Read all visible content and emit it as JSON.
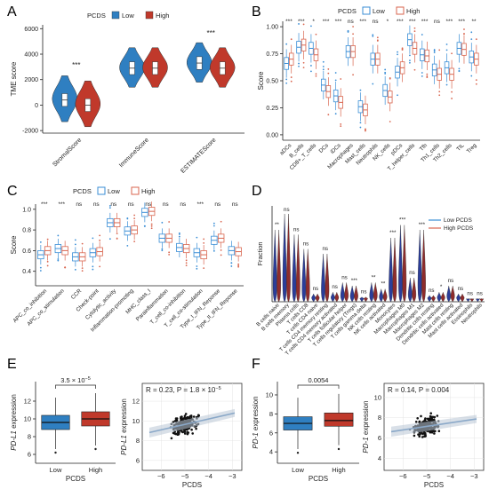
{
  "colors": {
    "low": "#2f7fc1",
    "high": "#c0392b",
    "lowLine": "#3a8ed6",
    "highLine": "#d9664f",
    "grid": "#e4e4e4",
    "reg": "#8aa8c8"
  },
  "chart_data": [
    {
      "panel": "A",
      "type": "violin",
      "legend_title": "PCDS",
      "legend": [
        "Low",
        "High"
      ],
      "ylabel": "TME score",
      "ylim": [
        -2200,
        6300
      ],
      "yticks": [
        -2000,
        0,
        2000,
        4000,
        6000
      ],
      "categories": [
        "StromalScore",
        "ImmuneScore",
        "ESTIMATEScore"
      ],
      "significance": [
        "***",
        "",
        "***"
      ],
      "series": [
        {
          "name": "Low",
          "median": [
            400,
            2900,
            3300
          ]
        },
        {
          "name": "High",
          "median": [
            0,
            2900,
            2900
          ]
        }
      ]
    },
    {
      "panel": "B",
      "type": "box",
      "legend_title": "PCDS",
      "legend": [
        "Low",
        "High"
      ],
      "ylabel": "Score",
      "ylim": [
        -0.05,
        1.05
      ],
      "yticks": [
        "0.00",
        "0.25",
        "0.50",
        "0.75",
        "1.00"
      ],
      "categories": [
        "aDCs",
        "B_cells",
        "CD8+_T_cells",
        "DCs",
        "iDCs",
        "Macrophages",
        "Mast_cells",
        "Neutrophils",
        "NK_cells",
        "pDCs",
        "T_helper_cells",
        "Tfh",
        "Th1_cells",
        "Th2_cells",
        "TIL",
        "Treg"
      ],
      "significance": [
        "***",
        "***",
        "*",
        "***",
        "***",
        "ns",
        "***",
        "ns",
        "*",
        "***",
        "***",
        "***",
        "ns",
        "***",
        "***",
        "**"
      ],
      "series": [
        {
          "name": "Low",
          "median": [
            0.66,
            0.81,
            0.8,
            0.46,
            0.36,
            0.77,
            0.26,
            0.7,
            0.41,
            0.58,
            0.88,
            0.74,
            0.6,
            0.62,
            0.8,
            0.72
          ]
        },
        {
          "name": "High",
          "median": [
            0.7,
            0.83,
            0.74,
            0.4,
            0.3,
            0.77,
            0.23,
            0.7,
            0.35,
            0.62,
            0.8,
            0.73,
            0.56,
            0.56,
            0.79,
            0.7
          ]
        }
      ]
    },
    {
      "panel": "C",
      "type": "box",
      "legend_title": "PCDS",
      "legend": [
        "Low",
        "High"
      ],
      "ylabel": "Score",
      "ylim": [
        0.26,
        1.05
      ],
      "yticks": [
        "0.4",
        "0.6",
        "0.8",
        "1.0"
      ],
      "categories": [
        "APC_co_inhibition",
        "APC_co_stimulation",
        "CCR",
        "Check-point",
        "Cytolytic_activity",
        "Inflammation-promoting",
        "MHC_class_I",
        "Parainflammation",
        "T_cell_co-inhibition",
        "T_cell_co-stimulation",
        "Type_I_IFN_Reponse",
        "Type_II_IFN_Reponse"
      ],
      "significance": [
        "***",
        "***",
        "ns",
        "ns",
        "ns",
        "ns",
        "ns",
        "ns",
        "ns",
        "***",
        "ns",
        "ns"
      ],
      "series": [
        {
          "name": "Low",
          "median": [
            0.56,
            0.62,
            0.54,
            0.58,
            0.87,
            0.79,
            0.97,
            0.72,
            0.63,
            0.58,
            0.7,
            0.6
          ]
        },
        {
          "name": "High",
          "median": [
            0.6,
            0.6,
            0.54,
            0.59,
            0.87,
            0.8,
            0.98,
            0.72,
            0.62,
            0.56,
            0.72,
            0.59
          ]
        }
      ]
    },
    {
      "panel": "D",
      "type": "violin",
      "ylabel": "Fraction",
      "legend": [
        "Low PCDS",
        "High PCDS"
      ],
      "categories": [
        "B cells naive",
        "B cells memory",
        "Plasma cells",
        "T cells CD8",
        "T cells CD4 naive",
        "T cells CD4 memory resting",
        "T cells CD4 memory activated",
        "T cells follicular helper",
        "T cells regulatory (Tregs)",
        "T cells gamma delta",
        "NK cells resting",
        "NK cells activated",
        "Monocytes",
        "Macrophages M0",
        "Macrophages M1",
        "Macrophages M2",
        "Dendritic cells resting",
        "Dendritic cells activated",
        "Mast cells resting",
        "Mast cells activated",
        "Eosinophils",
        "Neutrophils"
      ],
      "significance": [
        "**",
        "ns",
        "ns",
        "ns",
        "ns",
        "ns",
        "ns",
        "ns",
        "***",
        "ns",
        "**",
        "**",
        "***",
        "***",
        "ns",
        "***",
        "ns",
        "*",
        "ns",
        "ns",
        "ns",
        "ns"
      ],
      "max": [
        0.45,
        0.55,
        0.42,
        0.33,
        0.05,
        0.3,
        0.06,
        0.12,
        0.1,
        0.03,
        0.12,
        0.08,
        0.4,
        0.48,
        0.15,
        0.45,
        0.04,
        0.06,
        0.1,
        0.05,
        0.02,
        0.02
      ]
    },
    {
      "panel": "E1",
      "type": "box",
      "ylabel_gene": "PD-L1",
      "ylabel_suffix": " expression",
      "xlabel": "PCDS",
      "categories": [
        "Low",
        "High"
      ],
      "p_label": "3.5 × 10",
      "p_exp": "−5",
      "yticks": [
        "6",
        "8",
        "10",
        "12"
      ],
      "ylim": [
        5,
        14.2
      ],
      "q1": [
        8.8,
        9.2
      ],
      "median": [
        9.6,
        10.0
      ],
      "q3": [
        10.4,
        10.8
      ],
      "whisker_low": [
        6.6,
        7.0
      ],
      "whisker_high": [
        12.4,
        12.9
      ]
    },
    {
      "panel": "E2",
      "type": "scatter",
      "xlabel": "PCDS",
      "ylabel_gene": "PD-L1",
      "ylabel_suffix": " expression",
      "annotation": "R = 0.23, P = 1.8 × 10",
      "annotation_exp": "−5",
      "xticks": [
        "−6",
        "−5",
        "−4",
        "−3"
      ],
      "yticks": [
        "6",
        "8",
        "10",
        "12"
      ],
      "xlim": [
        -6.8,
        -2.6
      ],
      "ylim": [
        5,
        13.8
      ],
      "slope": 0.55,
      "intercept": 12.4
    },
    {
      "panel": "F1",
      "type": "box",
      "ylabel_gene": "PD-1",
      "ylabel_suffix": " expression",
      "xlabel": "PCDS",
      "categories": [
        "Low",
        "High"
      ],
      "p_label": "0.0054",
      "yticks": [
        "4",
        "6",
        "8",
        "10"
      ],
      "ylim": [
        2.8,
        11.4
      ],
      "q1": [
        6.3,
        6.7
      ],
      "median": [
        7.0,
        7.3
      ],
      "q3": [
        7.7,
        8.1
      ],
      "whisker_low": [
        4.3,
        4.7
      ],
      "whisker_high": [
        9.7,
        10.1
      ]
    },
    {
      "panel": "F2",
      "type": "scatter",
      "xlabel": "PCDS",
      "ylabel_gene": "PD-1",
      "ylabel_suffix": " expression",
      "annotation": "R = 0.14, P = 0.004",
      "xticks": [
        "−6",
        "−5",
        "−4",
        "−3"
      ],
      "yticks": [
        "4",
        "6",
        "8",
        "10"
      ],
      "xlim": [
        -6.8,
        -2.6
      ],
      "ylim": [
        2.8,
        11.4
      ],
      "slope": 0.35,
      "intercept": 8.9
    }
  ],
  "labels": {
    "a": "A",
    "b": "B",
    "c": "C",
    "d": "D",
    "e": "E",
    "f": "F"
  }
}
